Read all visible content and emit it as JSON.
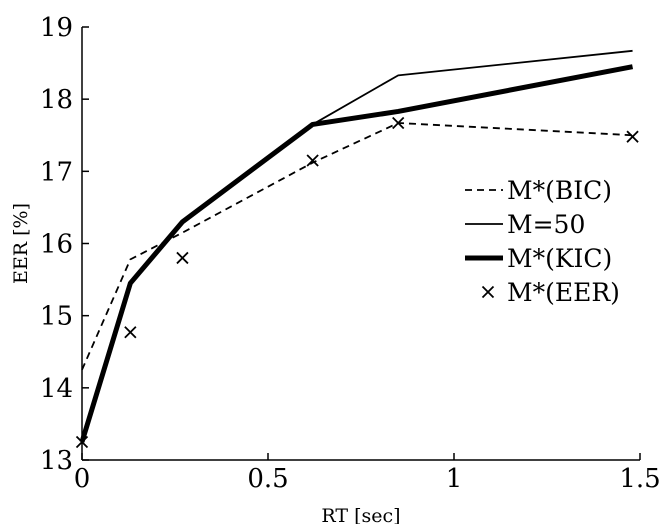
{
  "chart_data": {
    "type": "line",
    "xlabel": "RT [sec]",
    "ylabel": "EER [%]",
    "xlim": [
      0,
      1.5
    ],
    "ylim": [
      13,
      19
    ],
    "xticks": [
      0,
      0.5,
      1,
      1.5
    ],
    "xtick_labels": [
      "0",
      "0.5",
      "1",
      "1.5"
    ],
    "yticks": [
      13,
      14,
      15,
      16,
      17,
      18,
      19
    ],
    "ytick_labels": [
      "13",
      "14",
      "15",
      "16",
      "17",
      "18",
      "19"
    ],
    "grid": false,
    "legend_position": "right",
    "series": [
      {
        "name": "M*(BIC)",
        "style": "dashed",
        "color": "#000000",
        "x": [
          0,
          0.13,
          0.27,
          0.62,
          0.85,
          1.48
        ],
        "y": [
          14.25,
          15.78,
          16.15,
          17.12,
          17.67,
          17.5
        ]
      },
      {
        "name": "M=50",
        "style": "thin",
        "color": "#000000",
        "x": [
          0,
          0.13,
          0.27,
          0.62,
          0.85,
          1.48
        ],
        "y": [
          13.25,
          15.45,
          16.3,
          17.65,
          18.33,
          18.67
        ]
      },
      {
        "name": "M*(KIC)",
        "style": "thick",
        "color": "#000000",
        "x": [
          0,
          0.13,
          0.27,
          0.62,
          0.85,
          1.48
        ],
        "y": [
          13.25,
          15.45,
          16.3,
          17.65,
          17.83,
          18.45
        ]
      },
      {
        "name": "M*(EER)",
        "style": "marker-x",
        "color": "#000000",
        "x": [
          0,
          0.13,
          0.27,
          0.62,
          0.85,
          1.48
        ],
        "y": [
          13.25,
          14.77,
          15.8,
          17.15,
          17.67,
          17.48
        ]
      }
    ]
  }
}
